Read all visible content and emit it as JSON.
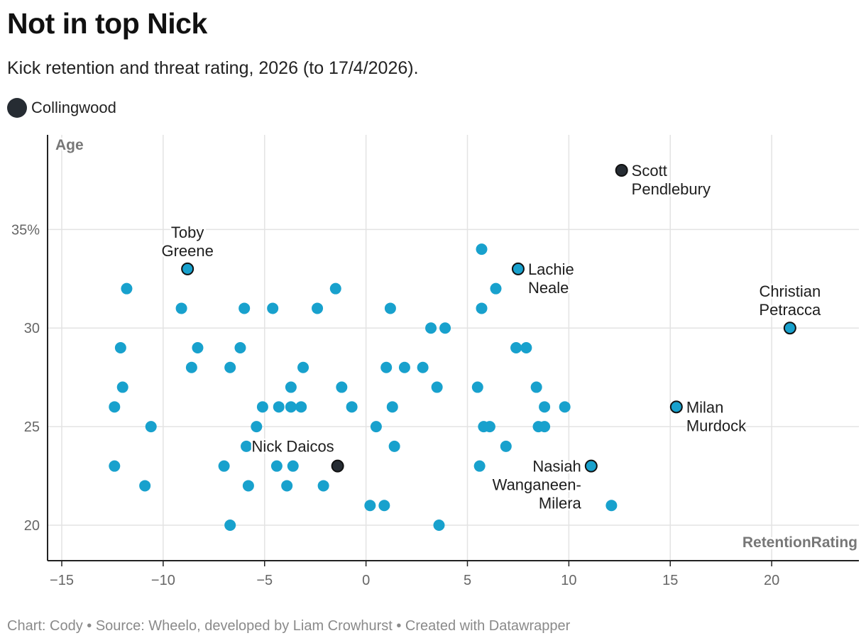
{
  "title": "Not in top Nick",
  "subtitle": "Kick retention and threat rating, 2026 (to 17/4/2026).",
  "legend": {
    "label": "Collingwood",
    "color": "#262c33"
  },
  "footer": "Chart: Cody • Source: Wheelo, developed by Liam Crowhurst • Created with Datawrapper",
  "colors": {
    "default": "#18a1cd",
    "collingwood": "#262c33",
    "grid": "#e3e3e3",
    "axis": "#222222"
  },
  "chart_data": {
    "type": "scatter",
    "title": "Not in top Nick",
    "xlabel": "RetentionRating",
    "ylabel": "Age",
    "xlim": [
      -15.7,
      24.3
    ],
    "ylim": [
      18.2,
      39.8
    ],
    "xticks": [
      -15,
      -10,
      -5,
      0,
      5,
      10,
      15,
      20
    ],
    "xtick_labels": [
      "−15",
      "−10",
      "−5",
      "0",
      "5",
      "10",
      "15",
      "20"
    ],
    "yticks": [
      20,
      25,
      30,
      35
    ],
    "ytick_labels": [
      "20",
      "25",
      "30",
      "35%"
    ],
    "grid": true,
    "points": [
      {
        "x": 12.6,
        "y": 38,
        "team": "Collingwood",
        "name": "Scott Pendlebury"
      },
      {
        "x": -1.4,
        "y": 23,
        "team": "Collingwood",
        "name": "Nick Daicos"
      },
      {
        "x": -8.8,
        "y": 33,
        "team": "Other",
        "name": "Toby Greene"
      },
      {
        "x": 7.5,
        "y": 33,
        "team": "Other",
        "name": "Lachie Neale"
      },
      {
        "x": 20.9,
        "y": 30,
        "team": "Other",
        "name": "Christian Petracca"
      },
      {
        "x": 15.3,
        "y": 26,
        "team": "Other",
        "name": "Milan Murdock"
      },
      {
        "x": 11.1,
        "y": 23,
        "team": "Other",
        "name": "Nasiah Wanganeen-Milera"
      },
      {
        "x": 5.7,
        "y": 34,
        "team": "Other"
      },
      {
        "x": -11.8,
        "y": 32,
        "team": "Other"
      },
      {
        "x": -1.5,
        "y": 32,
        "team": "Other"
      },
      {
        "x": 6.4,
        "y": 32,
        "team": "Other"
      },
      {
        "x": -9.1,
        "y": 31,
        "team": "Other"
      },
      {
        "x": -6.0,
        "y": 31,
        "team": "Other"
      },
      {
        "x": -4.6,
        "y": 31,
        "team": "Other"
      },
      {
        "x": -2.4,
        "y": 31,
        "team": "Other"
      },
      {
        "x": 1.2,
        "y": 31,
        "team": "Other"
      },
      {
        "x": 5.7,
        "y": 31,
        "team": "Other"
      },
      {
        "x": 3.2,
        "y": 30,
        "team": "Other"
      },
      {
        "x": 3.9,
        "y": 30,
        "team": "Other"
      },
      {
        "x": -12.1,
        "y": 29,
        "team": "Other"
      },
      {
        "x": -8.3,
        "y": 29,
        "team": "Other"
      },
      {
        "x": -6.2,
        "y": 29,
        "team": "Other"
      },
      {
        "x": 7.4,
        "y": 29,
        "team": "Other"
      },
      {
        "x": 7.9,
        "y": 29,
        "team": "Other"
      },
      {
        "x": -8.6,
        "y": 28,
        "team": "Other"
      },
      {
        "x": -6.7,
        "y": 28,
        "team": "Other"
      },
      {
        "x": -3.1,
        "y": 28,
        "team": "Other"
      },
      {
        "x": 1.0,
        "y": 28,
        "team": "Other"
      },
      {
        "x": 1.9,
        "y": 28,
        "team": "Other"
      },
      {
        "x": 2.8,
        "y": 28,
        "team": "Other"
      },
      {
        "x": -12.0,
        "y": 27,
        "team": "Other"
      },
      {
        "x": -3.7,
        "y": 27,
        "team": "Other"
      },
      {
        "x": -1.2,
        "y": 27,
        "team": "Other"
      },
      {
        "x": 3.5,
        "y": 27,
        "team": "Other"
      },
      {
        "x": 5.5,
        "y": 27,
        "team": "Other"
      },
      {
        "x": 8.4,
        "y": 27,
        "team": "Other"
      },
      {
        "x": -12.4,
        "y": 26,
        "team": "Other"
      },
      {
        "x": -5.1,
        "y": 26,
        "team": "Other"
      },
      {
        "x": -4.3,
        "y": 26,
        "team": "Other"
      },
      {
        "x": -3.7,
        "y": 26,
        "team": "Other"
      },
      {
        "x": -3.2,
        "y": 26,
        "team": "Other"
      },
      {
        "x": -0.7,
        "y": 26,
        "team": "Other"
      },
      {
        "x": 1.3,
        "y": 26,
        "team": "Other"
      },
      {
        "x": 8.8,
        "y": 26,
        "team": "Other"
      },
      {
        "x": 9.8,
        "y": 26,
        "team": "Other"
      },
      {
        "x": -10.6,
        "y": 25,
        "team": "Other"
      },
      {
        "x": -5.4,
        "y": 25,
        "team": "Other"
      },
      {
        "x": 0.5,
        "y": 25,
        "team": "Other"
      },
      {
        "x": 5.8,
        "y": 25,
        "team": "Other"
      },
      {
        "x": 6.1,
        "y": 25,
        "team": "Other"
      },
      {
        "x": 8.5,
        "y": 25,
        "team": "Other"
      },
      {
        "x": 8.8,
        "y": 25,
        "team": "Other"
      },
      {
        "x": -5.9,
        "y": 24,
        "team": "Other"
      },
      {
        "x": 1.4,
        "y": 24,
        "team": "Other"
      },
      {
        "x": 6.9,
        "y": 24,
        "team": "Other"
      },
      {
        "x": -12.4,
        "y": 23,
        "team": "Other"
      },
      {
        "x": -7.0,
        "y": 23,
        "team": "Other"
      },
      {
        "x": -4.4,
        "y": 23,
        "team": "Other"
      },
      {
        "x": -3.6,
        "y": 23,
        "team": "Other"
      },
      {
        "x": 5.6,
        "y": 23,
        "team": "Other"
      },
      {
        "x": -10.9,
        "y": 22,
        "team": "Other"
      },
      {
        "x": -5.8,
        "y": 22,
        "team": "Other"
      },
      {
        "x": -3.9,
        "y": 22,
        "team": "Other"
      },
      {
        "x": -2.1,
        "y": 22,
        "team": "Other"
      },
      {
        "x": 0.2,
        "y": 21,
        "team": "Other"
      },
      {
        "x": 0.9,
        "y": 21,
        "team": "Other"
      },
      {
        "x": 12.1,
        "y": 21,
        "team": "Other"
      },
      {
        "x": -6.7,
        "y": 20,
        "team": "Other"
      },
      {
        "x": 3.6,
        "y": 20,
        "team": "Other"
      }
    ],
    "annotations": [
      {
        "name": "Scott Pendlebury",
        "lines": [
          "Scott",
          "Pendlebury"
        ],
        "anchor": "left"
      },
      {
        "name": "Toby Greene",
        "lines": [
          "Toby",
          "Greene"
        ],
        "anchor": "above"
      },
      {
        "name": "Lachie Neale",
        "lines": [
          "Lachie",
          "Neale"
        ],
        "anchor": "left"
      },
      {
        "name": "Christian Petracca",
        "lines": [
          "Christian",
          "Petracca"
        ],
        "anchor": "above"
      },
      {
        "name": "Milan Murdock",
        "lines": [
          "Milan",
          "Murdock"
        ],
        "anchor": "left"
      },
      {
        "name": "Nick Daicos",
        "lines": [
          "Nick Daicos"
        ],
        "anchor": "above-left"
      },
      {
        "name": "Nasiah Wanganeen-Milera",
        "lines": [
          "Nasiah",
          "Wanganeen-",
          "Milera"
        ],
        "anchor": "right"
      }
    ]
  }
}
